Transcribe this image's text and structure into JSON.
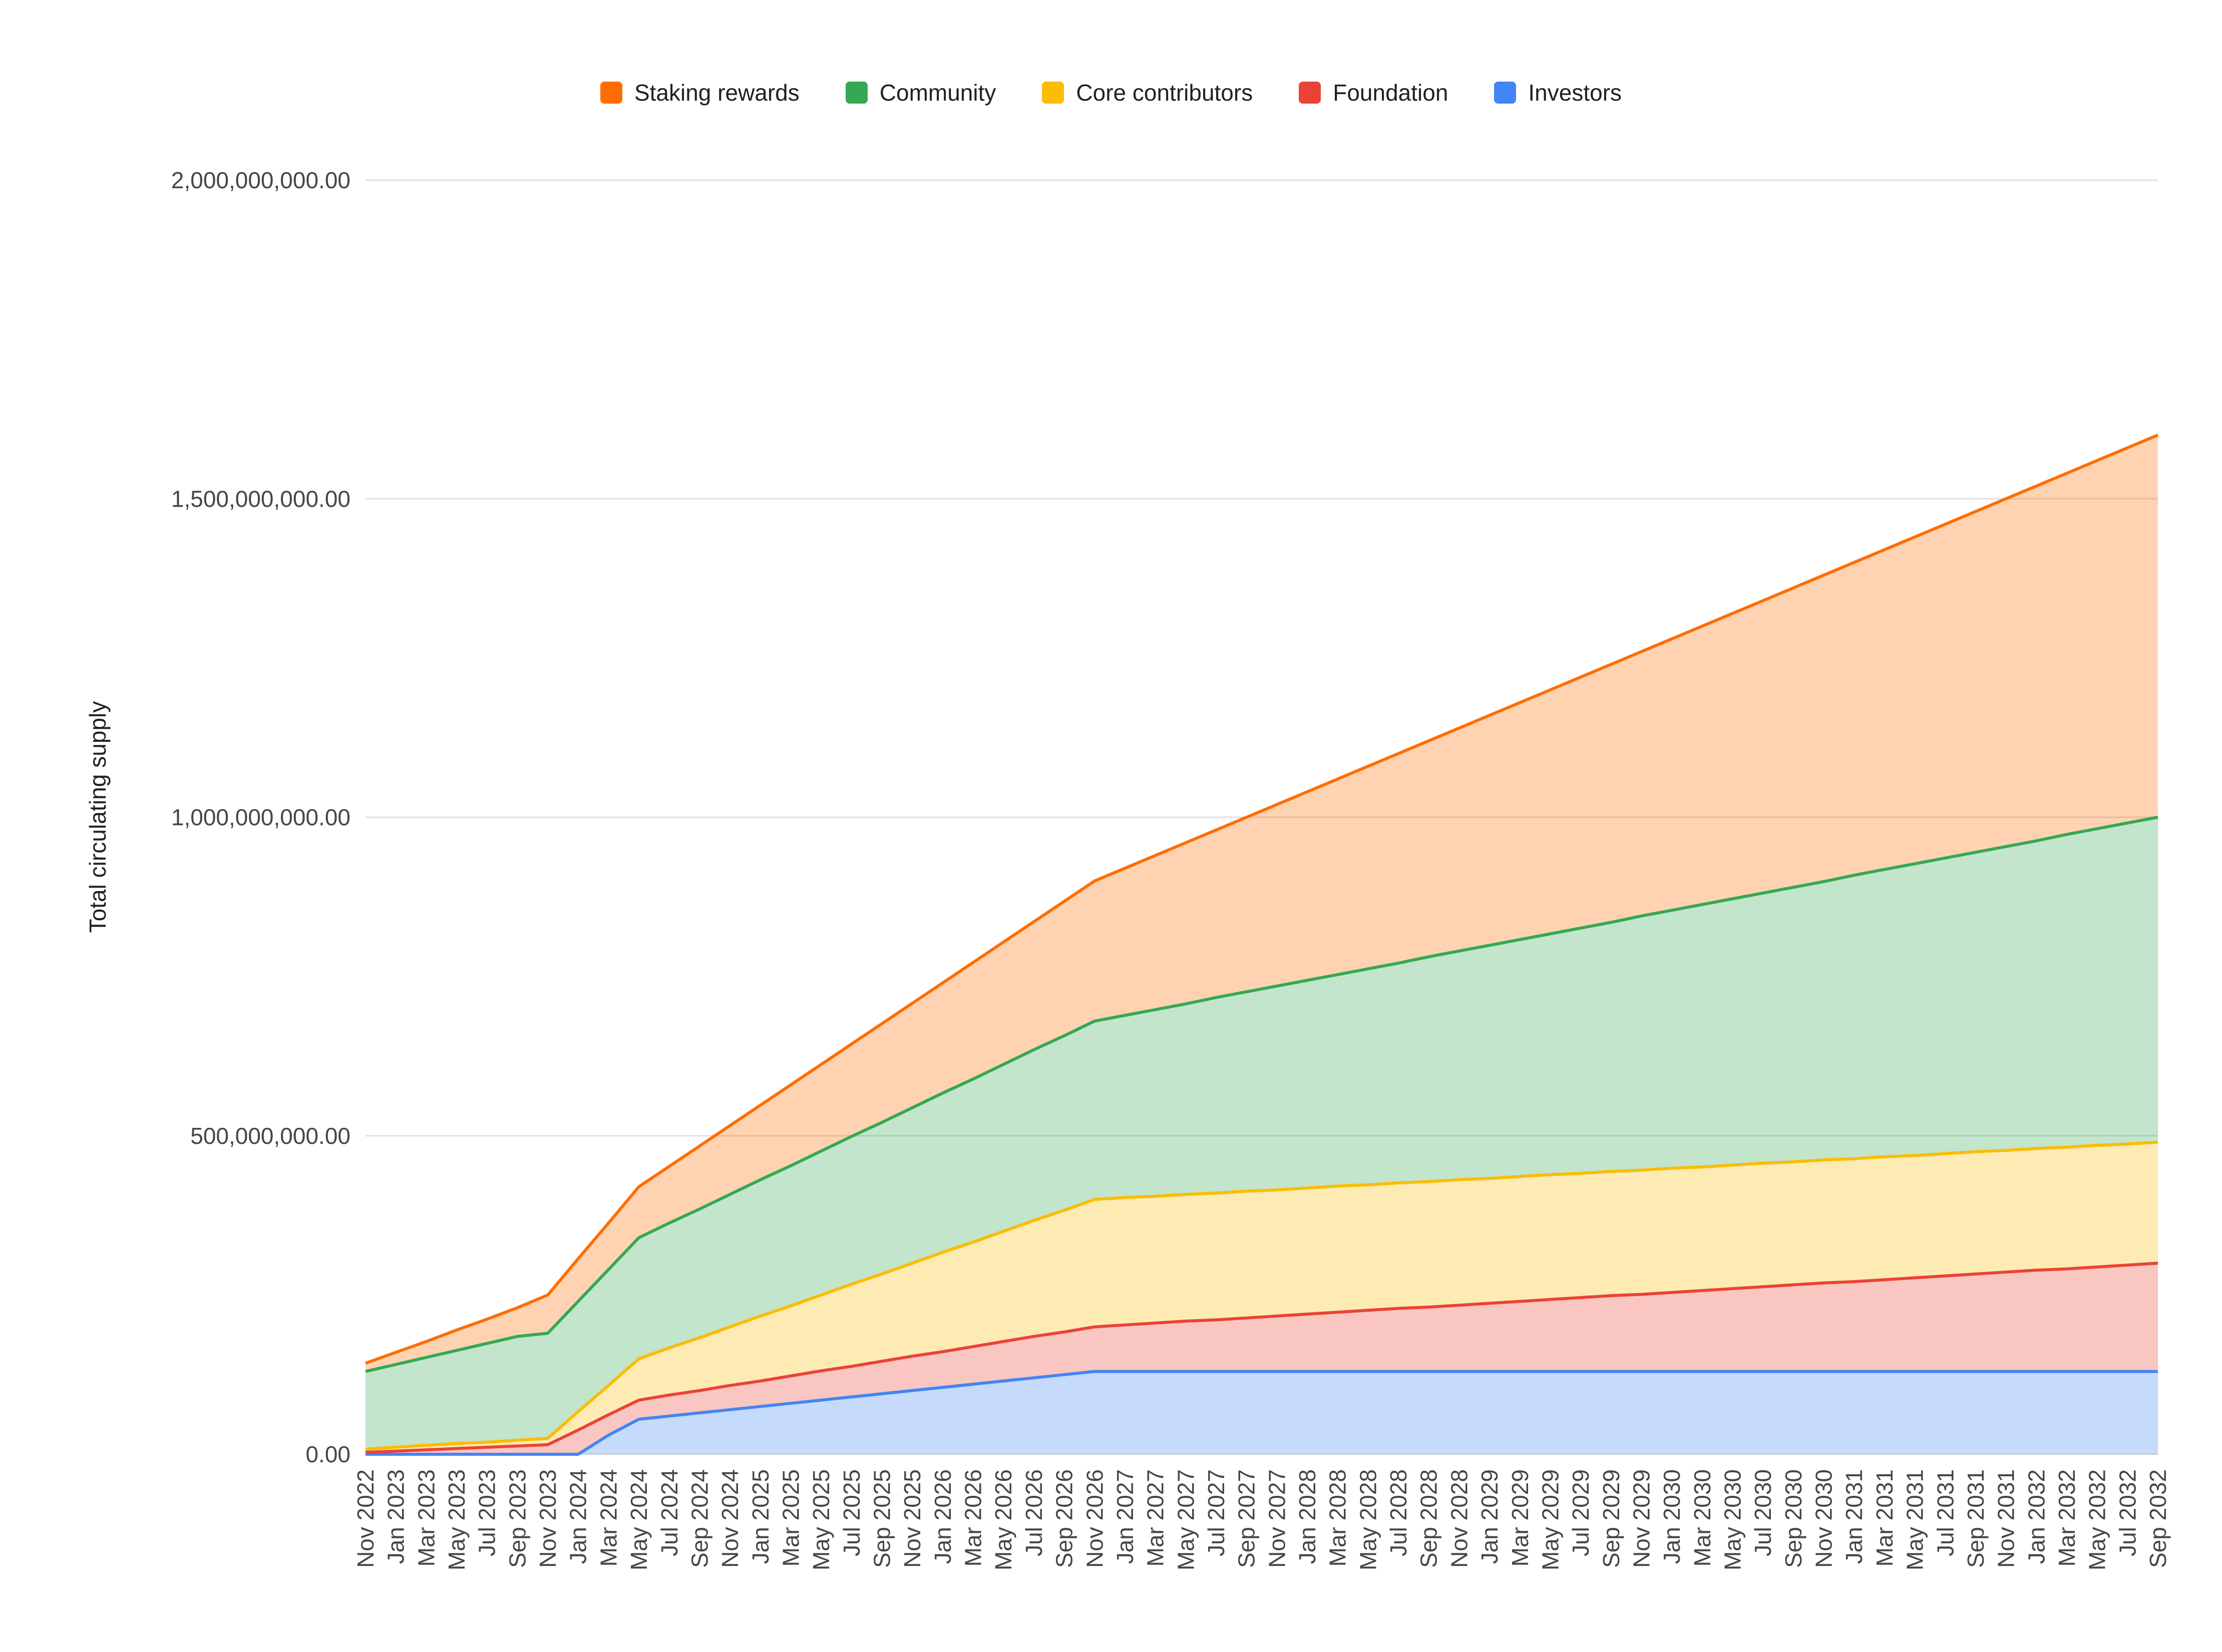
{
  "chart_data": {
    "type": "area",
    "stacked": true,
    "title": "",
    "xlabel": "",
    "ylabel": "Total circulating supply",
    "legend_position": "top",
    "grid": true,
    "ylim": [
      0,
      2000000000
    ],
    "yticks": [
      0,
      500000000,
      1000000000,
      1500000000,
      2000000000
    ],
    "ytick_labels": [
      "0.00",
      "500,000,000.00",
      "1,000,000,000.00",
      "1,500,000,000.00",
      "2,000,000,000.00"
    ],
    "categories": [
      "Nov 2022",
      "Jan 2023",
      "Mar 2023",
      "May 2023",
      "Jul 2023",
      "Sep 2023",
      "Nov 2023",
      "Jan 2024",
      "Mar 2024",
      "May 2024",
      "Jul 2024",
      "Sep 2024",
      "Nov 2024",
      "Jan 2025",
      "Mar 2025",
      "May 2025",
      "Jul 2025",
      "Sep 2025",
      "Nov 2025",
      "Jan 2026",
      "Mar 2026",
      "May 2026",
      "Jul 2026",
      "Sep 2026",
      "Nov 2026",
      "Jan 2027",
      "Mar 2027",
      "May 2027",
      "Jul 2027",
      "Sep 2027",
      "Nov 2027",
      "Jan 2028",
      "Mar 2028",
      "May 2028",
      "Jul 2028",
      "Sep 2028",
      "Nov 2028",
      "Jan 2029",
      "Mar 2029",
      "May 2029",
      "Jul 2029",
      "Sep 2029",
      "Nov 2029",
      "Jan 2030",
      "Mar 2030",
      "May 2030",
      "Jul 2030",
      "Sep 2030",
      "Nov 2030",
      "Jan 2031",
      "Mar 2031",
      "May 2031",
      "Jul 2031",
      "Sep 2031",
      "Nov 2031",
      "Jan 2032",
      "Mar 2032",
      "May 2032",
      "Jul 2032",
      "Sep 2032"
    ],
    "series": [
      {
        "name": "Investors",
        "color": "#4285F4",
        "values": [
          0,
          0,
          0,
          0,
          0,
          0,
          0,
          0,
          30000000.0,
          55000000.0,
          60000000.0,
          65000000.0,
          70000000.0,
          75000000.0,
          80000000.0,
          85000000.0,
          90000000.0,
          95000000.0,
          100000000.0,
          105000000.0,
          110000000.0,
          115000000.0,
          120000000.0,
          125000000.0,
          130000000.0,
          130000000.0,
          130000000.0,
          130000000.0,
          130000000.0,
          130000000.0,
          130000000.0,
          130000000.0,
          130000000.0,
          130000000.0,
          130000000.0,
          130000000.0,
          130000000.0,
          130000000.0,
          130000000.0,
          130000000.0,
          130000000.0,
          130000000.0,
          130000000.0,
          130000000.0,
          130000000.0,
          130000000.0,
          130000000.0,
          130000000.0,
          130000000.0,
          130000000.0,
          130000000.0,
          130000000.0,
          130000000.0,
          130000000.0,
          130000000.0,
          130000000.0,
          130000000.0,
          130000000.0,
          130000000.0,
          130000000.0
        ]
      },
      {
        "name": "Foundation",
        "color": "#EA4335",
        "values": [
          3000000.0,
          5000000.0,
          7000000.0,
          9000000.0,
          11000000.0,
          13000000.0,
          15000000.0,
          38000000.0,
          32000000.0,
          30000000.0,
          33000000.0,
          35000000.0,
          38000000.0,
          40000000.0,
          43000000.0,
          46000000.0,
          48000000.0,
          51000000.0,
          54000000.0,
          56000000.0,
          59000000.0,
          62000000.0,
          65000000.0,
          67000000.0,
          70000000.0,
          73000000.0,
          76000000.0,
          79000000.0,
          81000000.0,
          84000000.0,
          87000000.0,
          90000000.0,
          93000000.0,
          96000000.0,
          99000000.0,
          101000000.0,
          104000000.0,
          107000000.0,
          110000000.0,
          113000000.0,
          116000000.0,
          119000000.0,
          121000000.0,
          124000000.0,
          127000000.0,
          130000000.0,
          133000000.0,
          136000000.0,
          139000000.0,
          141000000.0,
          144000000.0,
          147000000.0,
          150000000.0,
          153000000.0,
          156000000.0,
          159000000.0,
          161000000.0,
          164000000.0,
          167000000.0,
          170000000.0
        ]
      },
      {
        "name": "Core contributors",
        "color": "#FBBC04",
        "values": [
          5000000.0,
          6000000.0,
          7000000.0,
          8000000.0,
          8000000.0,
          9000000.0,
          10000000.0,
          29000000.0,
          46000000.0,
          65000000.0,
          74000000.0,
          83000000.0,
          92000000.0,
          102000000.0,
          110000000.0,
          119000000.0,
          129000000.0,
          137000000.0,
          146000000.0,
          156000000.0,
          164000000.0,
          173000000.0,
          182000000.0,
          191000000.0,
          200000000.0,
          200000000.0,
          199000000.0,
          199000000.0,
          199000000.0,
          199000000.0,
          198000000.0,
          198000000.0,
          198000000.0,
          197000000.0,
          197000000.0,
          197000000.0,
          197000000.0,
          196000000.0,
          196000000.0,
          196000000.0,
          195000000.0,
          195000000.0,
          195000000.0,
          195000000.0,
          194000000.0,
          194000000.0,
          194000000.0,
          193000000.0,
          193000000.0,
          193000000.0,
          193000000.0,
          192000000.0,
          192000000.0,
          192000000.0,
          191000000.0,
          191000000.0,
          191000000.0,
          191000000.0,
          190000000.0,
          190000000.0
        ]
      },
      {
        "name": "Community",
        "color": "#34A853",
        "values": [
          122000000.0,
          130000000.0,
          138000000.0,
          146000000.0,
          155000000.0,
          163000000.0,
          165000000.0,
          173000000.0,
          182000000.0,
          190000000.0,
          196000000.0,
          202000000.0,
          208000000.0,
          214000000.0,
          220000000.0,
          226000000.0,
          232000000.0,
          238000000.0,
          244000000.0,
          250000000.0,
          256000000.0,
          262000000.0,
          268000000.0,
          274000000.0,
          280000000.0,
          286000000.0,
          293000000.0,
          299000000.0,
          307000000.0,
          313000000.0,
          320000000.0,
          326000000.0,
          332000000.0,
          339000000.0,
          345000000.0,
          353000000.0,
          359000000.0,
          366000000.0,
          372000000.0,
          378000000.0,
          385000000.0,
          391000000.0,
          399000000.0,
          405000000.0,
          412000000.0,
          418000000.0,
          424000000.0,
          431000000.0,
          437000000.0,
          445000000.0,
          451000000.0,
          458000000.0,
          464000000.0,
          470000000.0,
          477000000.0,
          483000000.0,
          491000000.0,
          497000000.0,
          504000000.0,
          510000000.0
        ]
      },
      {
        "name": "Staking rewards",
        "color": "#FF6D01",
        "values": [
          13000000.0,
          19000000.0,
          25000000.0,
          32000000.0,
          38000000.0,
          45000000.0,
          60000000.0,
          67000000.0,
          73000000.0,
          80000000.0,
          89000000.0,
          99000000.0,
          108000000.0,
          117000000.0,
          127000000.0,
          136000000.0,
          145000000.0,
          155000000.0,
          164000000.0,
          173000000.0,
          183000000.0,
          192000000.0,
          201000000.0,
          211000000.0,
          220000000.0,
          231000000.0,
          242000000.0,
          253000000.0,
          263000000.0,
          274000000.0,
          285000000.0,
          296000000.0,
          307000000.0,
          318000000.0,
          329000000.0,
          339000000.0,
          350000000.0,
          361000000.0,
          372000000.0,
          383000000.0,
          394000000.0,
          405000000.0,
          415000000.0,
          426000000.0,
          437000000.0,
          448000000.0,
          459000000.0,
          470000000.0,
          481000000.0,
          491000000.0,
          502000000.0,
          513000000.0,
          524000000.0,
          535000000.0,
          546000000.0,
          557000000.0,
          567000000.0,
          578000000.0,
          589000000.0,
          600000000.0
        ]
      }
    ],
    "legend_order": [
      "Staking rewards",
      "Community",
      "Core contributors",
      "Foundation",
      "Investors"
    ],
    "style": {
      "fill_opacity": 0.3,
      "line_width": 6,
      "gridline_color": "#e0e0e0",
      "tick_label_color": "#444746",
      "background": "#ffffff"
    }
  }
}
